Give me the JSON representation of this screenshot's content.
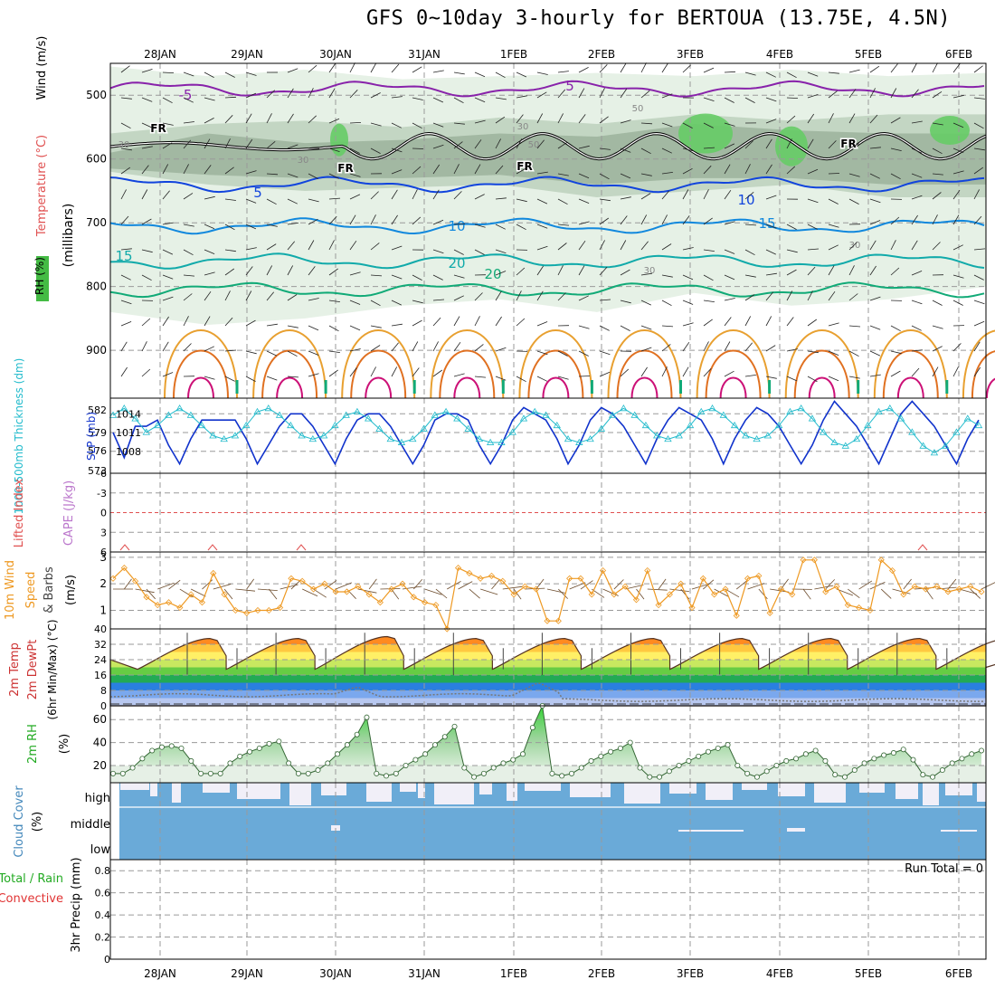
{
  "header": {
    "title": "GFS 0~10day 3-hourly for BERTOUA (13.75E, 4.5N)"
  },
  "colors": {
    "grid": "#9a9a9a",
    "rh_light": "#e3f0e3",
    "rh_mid": "#bfd3bf",
    "rh_dark": "#9fb59f",
    "rh_green": "#66cc66",
    "temp_purple": "#8822aa",
    "temp_blue": "#1144dd",
    "temp_lightblue": "#1188dd",
    "temp_teal": "#11aaaa",
    "temp_green": "#11aa77",
    "temp_orange": "#e8a030",
    "temp_darkorange": "#e07020",
    "temp_magenta": "#cc1177",
    "slp_blue": "#1133cc",
    "thickness_cyan": "#22bbcc",
    "wind_orange": "#ee9922",
    "rh2m_green": "#22aa22",
    "cloud_blue": "#6aaad8",
    "cloud_white": "#f1eff8",
    "dewpt_gray": "#777777"
  },
  "chart_data": [
    {
      "type": "contour",
      "panel": "upper-air",
      "x_dates": [
        "28JAN",
        "29JAN",
        "30JAN",
        "31JAN",
        "1FEB",
        "2FEB",
        "3FEB",
        "4FEB",
        "5FEB",
        "6FEB"
      ],
      "ylabel_parts": [
        "Wind (m/s)",
        "Temperature (°C)",
        "(millibars)",
        "RH (%)"
      ],
      "y_ticks": [
        500,
        600,
        700,
        800,
        900
      ],
      "ylim": [
        450,
        975
      ],
      "rh_contour_labels": [
        "30",
        "30",
        "30",
        "50",
        "50",
        "30",
        "30"
      ],
      "freezing_labels": [
        "FR",
        "FR",
        "FR",
        "FR"
      ],
      "isotherms": [
        {
          "label": "-5",
          "pressure": 490
        },
        {
          "label": "5",
          "pressure": 640
        },
        {
          "label": "10",
          "pressure": 705
        },
        {
          "label": "15",
          "pressure": 760
        },
        {
          "label": "20",
          "pressure": 805
        }
      ],
      "isotherm_labels": [
        "-5",
        "5",
        "5",
        "10",
        "10",
        "15",
        "15",
        "20",
        "20"
      ],
      "freezing_level_pressure": 580
    },
    {
      "type": "line",
      "panel": "slp-thickness",
      "ylabel_left": "1000-500mb Thickness (dm)",
      "ylabel_right": "SLP (mb)",
      "y_ticks_left": [
        "582",
        "579",
        "576",
        "573"
      ],
      "y_ticks_right": [
        "1014",
        "1011",
        "1008"
      ],
      "slp": [
        1011,
        1007,
        1012,
        1012,
        1013,
        1009,
        1006,
        1010,
        1013,
        1013,
        1013,
        1013,
        1010,
        1006,
        1009,
        1012,
        1014,
        1014,
        1012,
        1009,
        1006,
        1010,
        1013,
        1014,
        1014,
        1012,
        1009,
        1006,
        1009,
        1013,
        1014,
        1014,
        1013,
        1009,
        1006,
        1009,
        1013,
        1015,
        1014,
        1013,
        1010,
        1006,
        1009,
        1013,
        1015,
        1014,
        1012,
        1009,
        1006,
        1010,
        1013,
        1015,
        1014,
        1013,
        1010,
        1006,
        1010,
        1013,
        1015,
        1014,
        1012,
        1009,
        1006,
        1009,
        1013,
        1016,
        1014,
        1012,
        1009,
        1006,
        1010,
        1014,
        1016,
        1014,
        1012,
        1009,
        1006,
        1010,
        1013
      ],
      "thickness": [
        580.5,
        581.5,
        580,
        578,
        579,
        580.5,
        581.5,
        580.5,
        579,
        577.5,
        577,
        577.5,
        579,
        581,
        581.5,
        580.5,
        579,
        577.5,
        577,
        577.5,
        579,
        580.5,
        581,
        580,
        578.5,
        577,
        576.5,
        577,
        578.5,
        580.5,
        581,
        580,
        578.5,
        577,
        576.5,
        576.5,
        578,
        580,
        581,
        580.5,
        579,
        577,
        576.5,
        577,
        578.5,
        580.5,
        581.5,
        580.5,
        579,
        577.5,
        577,
        577.5,
        579,
        581,
        581.5,
        580.5,
        579,
        577.5,
        577,
        577.5,
        579,
        581,
        581.5,
        580,
        578,
        576.5,
        576,
        577,
        579,
        581,
        581.5,
        580,
        578,
        576,
        575,
        576,
        578,
        580,
        579
      ]
    },
    {
      "type": "line",
      "panel": "cape-li",
      "ylabel_left": "Lifted Index",
      "ylabel_right": "CAPE (J/kg)",
      "y_ticks": [
        "-6",
        "-3",
        "0",
        "3",
        "6"
      ],
      "ylim": [
        -6,
        6
      ]
    },
    {
      "type": "line",
      "panel": "wind10m",
      "ylabel_parts": [
        "10m Wind",
        "Speed",
        "& Barbs"
      ],
      "yunit": "(m/s)",
      "y_ticks": [
        "3",
        "2",
        "1"
      ],
      "ylim": [
        0.3,
        3.2
      ],
      "values": [
        2.2,
        2.6,
        2.1,
        1.5,
        1.2,
        1.3,
        1.1,
        1.6,
        1.3,
        2.4,
        1.6,
        1.0,
        0.9,
        1.0,
        1.0,
        1.1,
        2.2,
        2.1,
        1.8,
        2.0,
        1.7,
        1.7,
        1.9,
        1.6,
        1.3,
        1.8,
        2.0,
        1.5,
        1.3,
        1.2,
        0.3,
        2.6,
        2.4,
        2.2,
        2.3,
        2.1,
        1.6,
        1.9,
        1.8,
        0.6,
        0.6,
        2.2,
        2.2,
        1.6,
        2.5,
        1.6,
        1.9,
        1.4,
        2.5,
        1.2,
        1.6,
        2.0,
        1.1,
        2.2,
        1.6,
        1.8,
        0.8,
        2.2,
        2.3,
        0.9,
        1.8,
        1.6,
        2.9,
        2.9,
        1.7,
        1.9,
        1.2,
        1.1,
        1.0,
        2.9,
        2.5,
        1.6,
        1.9,
        1.8,
        1.9,
        1.7,
        1.8,
        1.9,
        1.7
      ]
    },
    {
      "type": "area",
      "panel": "temp2m",
      "ylabel_parts": [
        "2m Temp",
        "2m DewPt",
        "(6hr Min/Max) (°C)"
      ],
      "y_ticks": [
        "40",
        "32",
        "24",
        "16",
        "8",
        "0"
      ],
      "ylim": [
        0,
        40
      ],
      "temp_max": [
        35,
        35,
        36,
        35,
        35,
        35,
        35,
        35,
        35,
        35
      ],
      "temp_min": [
        19,
        19,
        19,
        19,
        19,
        19,
        19,
        19,
        19,
        19
      ],
      "dewpoint": [
        6,
        6,
        5,
        5,
        10,
        5,
        5,
        14,
        5,
        3,
        3,
        3,
        3,
        3,
        3,
        3,
        3,
        3,
        3
      ]
    },
    {
      "type": "area",
      "panel": "rh2m",
      "ylabel": "2m RH",
      "yunit": "(%)",
      "y_ticks": [
        "60",
        "40",
        "20"
      ],
      "ylim": [
        5,
        72
      ],
      "values": [
        13,
        13,
        18,
        26,
        33,
        36,
        37,
        35,
        24,
        13,
        13,
        13,
        22,
        28,
        32,
        35,
        39,
        41,
        22,
        13,
        13,
        16,
        22,
        30,
        38,
        47,
        62,
        13,
        11,
        13,
        20,
        25,
        30,
        38,
        45,
        54,
        18,
        10,
        13,
        18,
        22,
        25,
        30,
        53,
        77,
        13,
        11,
        13,
        18,
        24,
        28,
        32,
        35,
        40,
        18,
        10,
        10,
        15,
        20,
        24,
        28,
        32,
        35,
        38,
        20,
        13,
        10,
        15,
        20,
        24,
        26,
        30,
        33,
        24,
        12,
        10,
        16,
        22,
        26,
        29,
        31,
        34,
        25,
        12,
        10,
        16,
        22,
        26,
        30,
        33
      ]
    },
    {
      "type": "bar",
      "panel": "cloud",
      "ylabel": "Cloud Cover",
      "yunit": "(%)",
      "levels": [
        "high",
        "middle",
        "low"
      ]
    },
    {
      "type": "bar",
      "panel": "precip",
      "ylabel_parts": [
        "Total / Rain",
        "Convective",
        "3hr Precip (mm)"
      ],
      "y_ticks": [
        "0.8",
        "0.6",
        "0.4",
        "0.2",
        "0"
      ],
      "ylim": [
        0,
        0.9
      ],
      "run_total_label": "Run Total = 0"
    }
  ]
}
